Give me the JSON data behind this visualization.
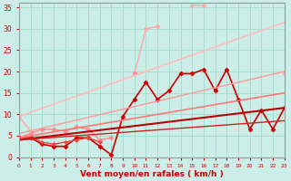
{
  "bg_color": "#cceee8",
  "grid_color": "#aaddcc",
  "xlabel": "Vent moyen/en rafales ( km/h )",
  "xlim": [
    0,
    23
  ],
  "ylim": [
    0,
    36
  ],
  "yticks": [
    0,
    5,
    10,
    15,
    20,
    25,
    30,
    35
  ],
  "xticks": [
    0,
    1,
    2,
    3,
    4,
    5,
    6,
    7,
    8,
    9,
    10,
    11,
    12,
    13,
    14,
    15,
    16,
    17,
    18,
    19,
    20,
    21,
    22,
    23
  ],
  "series": [
    {
      "x": [
        0,
        1,
        2,
        3,
        4,
        5,
        6,
        7,
        8,
        9,
        10,
        11,
        12,
        13,
        14,
        15,
        16,
        17,
        18,
        19,
        20,
        21,
        22,
        23
      ],
      "y": [
        9.5,
        6.0,
        null,
        null,
        null,
        null,
        null,
        null,
        null,
        null,
        19.5,
        30.0,
        30.5,
        null,
        null,
        35.5,
        35.5,
        null,
        null,
        null,
        null,
        null,
        null,
        19.5
      ],
      "color": "#ffaaaa",
      "lw": 1.0,
      "marker": "D",
      "ms": 2.5,
      "style": "-"
    },
    {
      "x": [
        0,
        1,
        2,
        3,
        4,
        5,
        6,
        7,
        8,
        9,
        10,
        11,
        12,
        13,
        14,
        15,
        16,
        17,
        18,
        19,
        20,
        21,
        22,
        23
      ],
      "y": [
        4.5,
        5.5,
        6.5,
        6.5,
        6.0,
        7.0,
        6.5,
        4.0,
        4.5,
        null,
        19.5,
        null,
        null,
        null,
        null,
        null,
        null,
        null,
        null,
        null,
        null,
        null,
        null,
        null
      ],
      "color": "#ff8888",
      "lw": 1.0,
      "marker": "D",
      "ms": 2.5,
      "style": "-"
    },
    {
      "x": [
        0,
        1,
        2,
        3,
        4,
        5,
        6,
        7,
        8,
        9,
        10,
        11,
        12,
        13,
        14,
        15,
        16,
        17,
        18,
        19,
        20,
        21,
        22,
        23
      ],
      "y": [
        4.5,
        4.5,
        3.0,
        2.5,
        2.5,
        4.5,
        4.5,
        2.5,
        0.5,
        9.5,
        13.5,
        17.5,
        13.5,
        15.5,
        19.5,
        19.5,
        20.5,
        15.5,
        20.5,
        13.5,
        6.5,
        11.0,
        6.5,
        11.5
      ],
      "color": "#cc0000",
      "lw": 1.2,
      "marker": "D",
      "ms": 2.5,
      "style": "-"
    },
    {
      "x": [
        0,
        1,
        2,
        3,
        4,
        5,
        6,
        7
      ],
      "y": [
        4.5,
        4.5,
        3.5,
        3.0,
        3.5,
        4.0,
        4.5,
        3.5
      ],
      "color": "#ee4444",
      "lw": 1.0,
      "marker": "D",
      "ms": 2.0,
      "style": "-"
    },
    {
      "x": [
        0,
        23
      ],
      "y": [
        4.0,
        11.5
      ],
      "color": "#bb0000",
      "lw": 1.5,
      "marker": null,
      "ms": 0,
      "style": "-"
    },
    {
      "x": [
        0,
        23
      ],
      "y": [
        4.5,
        15.0
      ],
      "color": "#ff7777",
      "lw": 1.2,
      "marker": null,
      "ms": 0,
      "style": "-"
    },
    {
      "x": [
        0,
        23
      ],
      "y": [
        9.5,
        31.5
      ],
      "color": "#ffbbbb",
      "lw": 1.2,
      "marker": null,
      "ms": 0,
      "style": "-"
    },
    {
      "x": [
        0,
        23
      ],
      "y": [
        5.5,
        20.0
      ],
      "color": "#ff9999",
      "lw": 1.0,
      "marker": null,
      "ms": 0,
      "style": "-"
    },
    {
      "x": [
        0,
        23
      ],
      "y": [
        4.0,
        8.5
      ],
      "color": "#cc2222",
      "lw": 1.0,
      "marker": null,
      "ms": 0,
      "style": "-"
    }
  ],
  "xlabel_color": "#cc0000",
  "tick_color": "#cc0000",
  "label_fontsize": 6.5,
  "tick_fontsize": 5.5
}
